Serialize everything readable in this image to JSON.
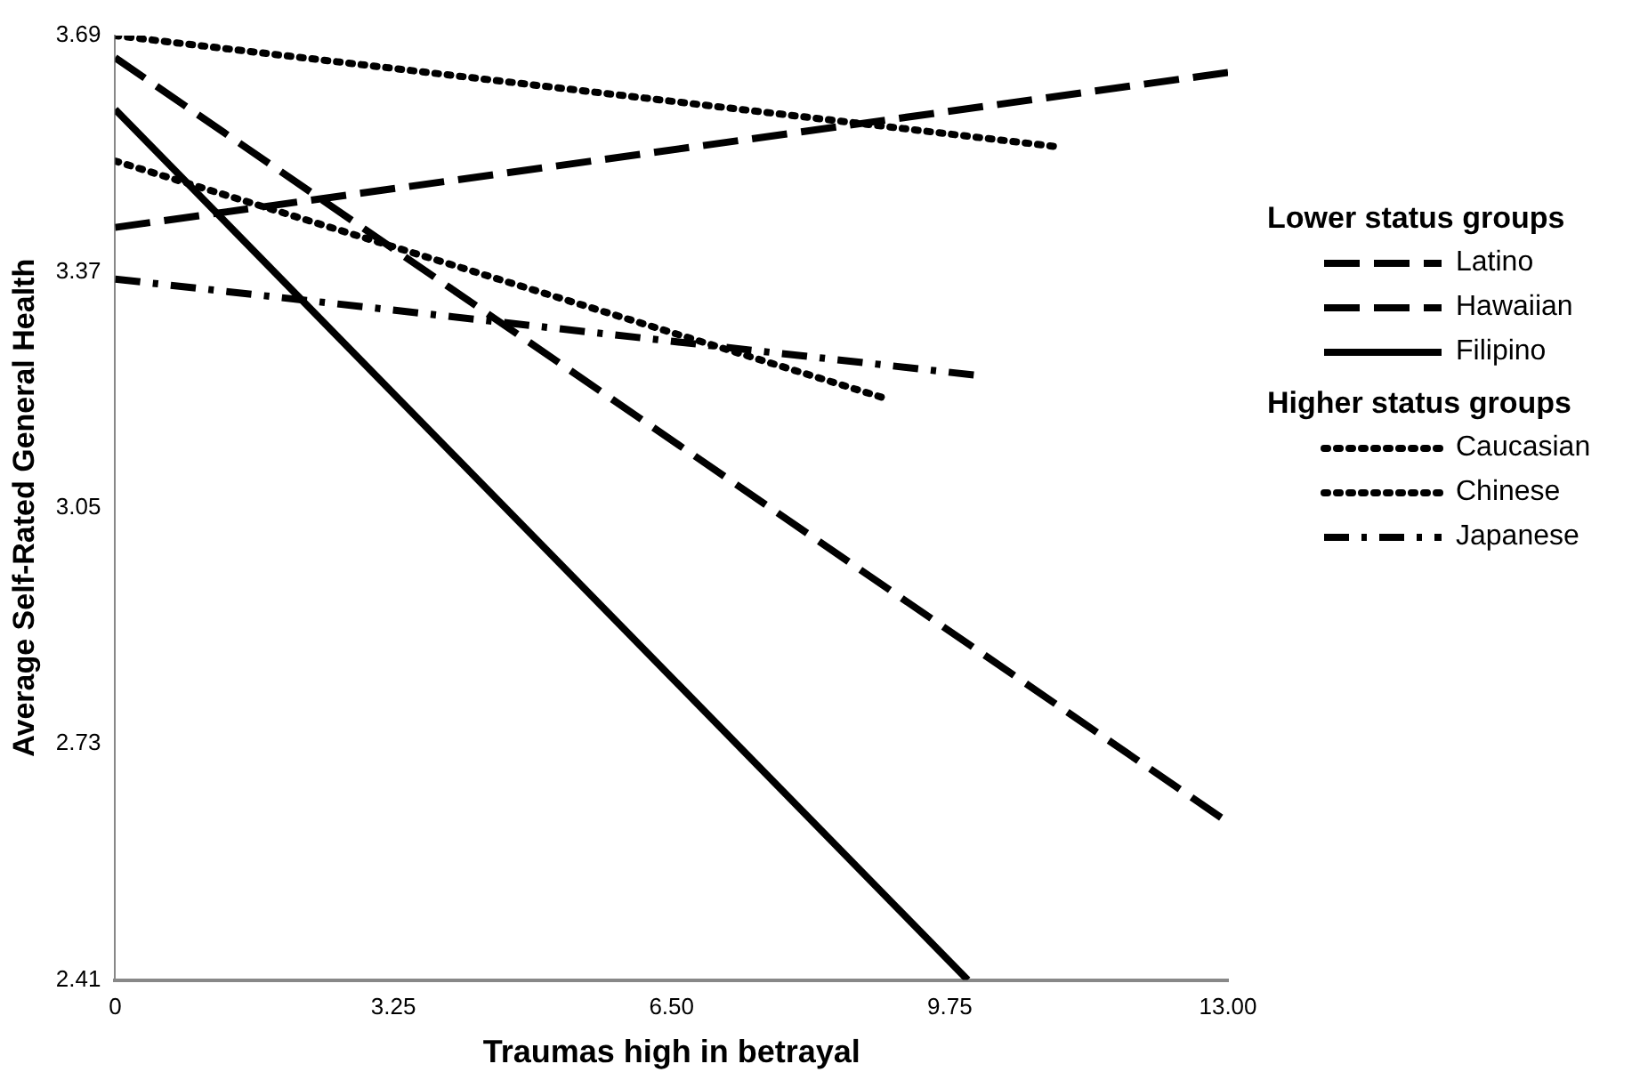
{
  "chart_data": {
    "type": "line",
    "xlabel": "Traumas high in betrayal",
    "ylabel": "Average Self-Rated General Health",
    "xlim": [
      0,
      13
    ],
    "xticks": [
      0,
      {
        "value": 3.25,
        "label": "3.25"
      },
      {
        "value": 6.5,
        "label": "6.50"
      },
      {
        "value": 9.75,
        "label": "9.75"
      },
      {
        "value": 13,
        "label": "13.00"
      }
    ],
    "ylim": [
      2.41,
      3.69
    ],
    "yticks": [
      2.41,
      2.73,
      3.05,
      3.37,
      3.69
    ],
    "grid": false,
    "legend": "right",
    "marker": "none",
    "annotations": [
      "Lower status groups",
      "Higher status groups"
    ],
    "series": [
      {
        "name": "Latino",
        "color": "#000000",
        "line_style": "dashed",
        "x": [
          0,
          13
        ],
        "values": [
          3.43,
          3.64
        ]
      },
      {
        "name": "Hawaiian",
        "color": "#000000",
        "line_style": "dashed",
        "x": [
          0,
          12.92
        ],
        "values": [
          3.66,
          2.63
        ]
      },
      {
        "name": "Filipino",
        "color": "#000000",
        "line_style": "solid",
        "x": [
          0,
          9.96
        ],
        "values": [
          3.59,
          2.41
        ]
      },
      {
        "name": "Caucasian",
        "color": "#000000",
        "line_style": "dotted",
        "x": [
          0,
          10.96
        ],
        "values": [
          3.69,
          3.54
        ]
      },
      {
        "name": "Chinese",
        "color": "#000000",
        "line_style": "dotted",
        "x": [
          0,
          8.95
        ],
        "values": [
          3.52,
          3.2
        ]
      },
      {
        "name": "Japanese",
        "color": "#000000",
        "line_style": "dashdot",
        "x": [
          0,
          10.03
        ],
        "values": [
          3.36,
          3.23
        ]
      }
    ]
  }
}
